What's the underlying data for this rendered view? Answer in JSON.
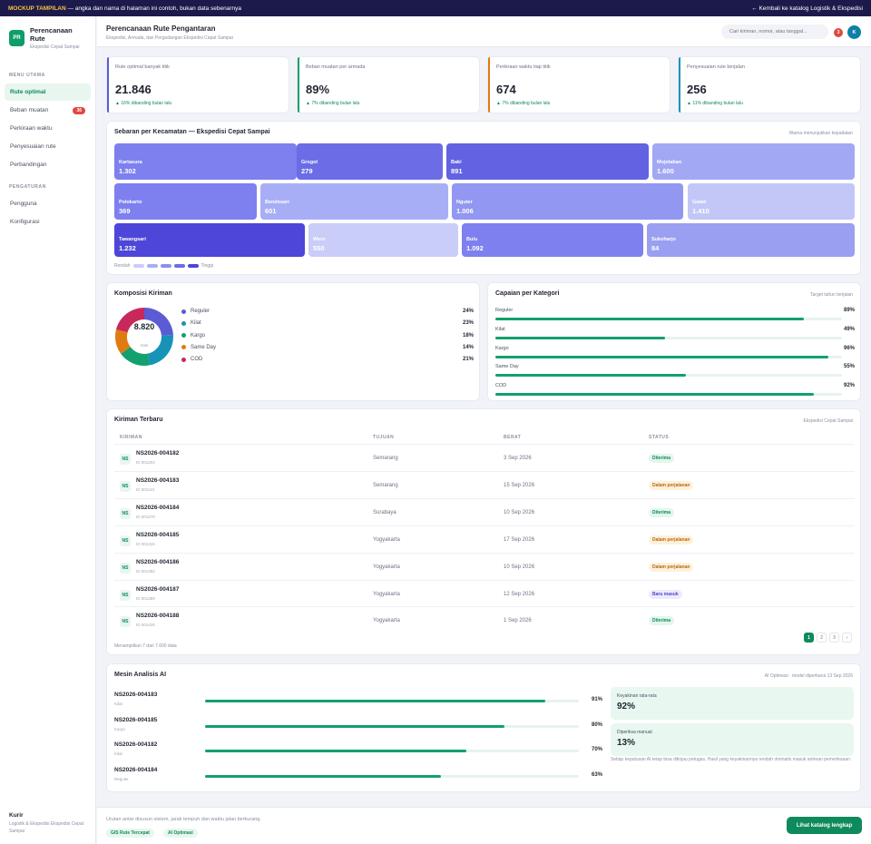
{
  "banner": {
    "tag": "MOCKUP TAMPILAN",
    "text": " — angka dan nama di halaman ini contoh, bukan data sebenarnya",
    "back": "← Kembali ke katalog Logistik & Ekspedisi"
  },
  "brand": {
    "logo": "PR",
    "title": "Perencanaan Rute",
    "subtitle": "Ekspedisi Cepat Sampai"
  },
  "nav": {
    "main_label": "MENU UTAMA",
    "main": [
      {
        "label": "Rute optimal",
        "active": true
      },
      {
        "label": "Beban muatan",
        "badge": "36"
      },
      {
        "label": "Perkiraan waktu"
      },
      {
        "label": "Penyesuaian rute"
      },
      {
        "label": "Perbandingan"
      }
    ],
    "settings_label": "PENGATURAN",
    "settings": [
      {
        "label": "Pengguna"
      },
      {
        "label": "Konfigurasi"
      }
    ]
  },
  "sidebar_footer": {
    "title": "Kurir",
    "subtitle": "Logistik & Ekspedisi Ekspedisi Cepat Sampai"
  },
  "header": {
    "title": "Perencanaan Rute Pengantaran",
    "subtitle": "Ekspedisi, Armada, dan Pergudangan Ekspedisi Cepat Sampai",
    "search_placeholder": "Cari kiriman, nomor, atau tanggal...",
    "notifications": "3",
    "avatar": "K"
  },
  "kpis": [
    {
      "label": "Rute optimal banyak titik",
      "value": "21.846",
      "delta": "▲ 16% dibanding bulan lalu",
      "color": "#5b5bd6"
    },
    {
      "label": "Beban muatan per armada",
      "value": "89%",
      "delta": "▲ 7% dibanding bulan lalu",
      "color": "#12a06e"
    },
    {
      "label": "Perkiraan waktu tiap titik",
      "value": "674",
      "delta": "▲ 7% dibanding bulan lalu",
      "color": "#e07b12"
    },
    {
      "label": "Penyesuaian rute berjalan",
      "value": "256",
      "delta": "▲ 11% dibanding bulan lalu",
      "color": "#1793b8"
    }
  ],
  "treemap": {
    "title": "Sebaran per Kecamatan — Ekspedisi Cepat Sampai",
    "note": "Warna menunjukkan kepadatan",
    "scale_low": "Rendah",
    "scale_high": "Tinggi",
    "scale_colors": [
      "#c9cdf8",
      "#a8aef5",
      "#8b90f0",
      "#6b6ce6",
      "#4e46d8"
    ],
    "tiles": [
      {
        "name": "Kartasura",
        "value": "1.302",
        "color": "#7d80ee"
      },
      {
        "name": "Grogol",
        "value": "279",
        "color": "#6b6ce6"
      },
      {
        "name": "Baki",
        "value": "891",
        "color": "#6262e2"
      },
      {
        "name": "Mojolaban",
        "value": "1.600",
        "color": "#a2a8f3"
      },
      {
        "name": "Polokarto",
        "value": "369",
        "color": "#7d80ee"
      },
      {
        "name": "Bendosari",
        "value": "601",
        "color": "#a8aef5"
      },
      {
        "name": "Nguter",
        "value": "1.006",
        "color": "#9297f1"
      },
      {
        "name": "Gatak",
        "value": "1.410",
        "color": "#c2c7f7"
      },
      {
        "name": "Tawangsari",
        "value": "1.232",
        "color": "#4e46d8"
      },
      {
        "name": "Weru",
        "value": "550",
        "color": "#c9cdf8"
      },
      {
        "name": "Bulu",
        "value": "1.092",
        "color": "#7d80ee"
      },
      {
        "name": "Sukoharjo",
        "value": "84",
        "color": "#9a9ff2"
      }
    ]
  },
  "composition": {
    "title": "Komposisi Kiriman",
    "total": "8.820",
    "total_label": "total",
    "items": [
      {
        "label": "Reguler",
        "pct": "24%",
        "value": 24,
        "color": "#5b5bd6"
      },
      {
        "label": "Kilat",
        "pct": "23%",
        "value": 23,
        "color": "#1793b8"
      },
      {
        "label": "Kargo",
        "pct": "18%",
        "value": 18,
        "color": "#12a06e"
      },
      {
        "label": "Same Day",
        "pct": "14%",
        "value": 14,
        "color": "#e07b12"
      },
      {
        "label": "COD",
        "pct": "21%",
        "value": 21,
        "color": "#c8285a"
      }
    ]
  },
  "achievement": {
    "title": "Capaian per Kategori",
    "note": "Target tahun berjalan",
    "items": [
      {
        "label": "Reguler",
        "pct": "89%",
        "value": 0.89
      },
      {
        "label": "Kilat",
        "pct": "49%",
        "value": 0.49
      },
      {
        "label": "Kargo",
        "pct": "96%",
        "value": 0.96
      },
      {
        "label": "Same Day",
        "pct": "55%",
        "value": 0.55
      },
      {
        "label": "COD",
        "pct": "92%",
        "value": 0.92
      }
    ]
  },
  "shipments": {
    "title": "Kiriman Terbaru",
    "note": "Ekspedisi Cepat Sampai",
    "columns": [
      "KIRIMAN",
      "TUJUAN",
      "BERAT",
      "STATUS"
    ],
    "rows": [
      {
        "avatar": "NS",
        "code": "NS2026-004182",
        "id": "ID 001204",
        "dest": "Semarang",
        "date": "3 Sep 2026",
        "status": "Diterima",
        "kind": "ok"
      },
      {
        "avatar": "NS",
        "code": "NS2026-004183",
        "id": "ID 001241",
        "dest": "Semarang",
        "date": "15 Sep 2026",
        "status": "Dalam perjalanan",
        "kind": "warn"
      },
      {
        "avatar": "NS",
        "code": "NS2026-004184",
        "id": "ID 001278",
        "dest": "Surabaya",
        "date": "10 Sep 2026",
        "status": "Diterima",
        "kind": "ok"
      },
      {
        "avatar": "NS",
        "code": "NS2026-004185",
        "id": "ID 001315",
        "dest": "Yogyakarta",
        "date": "17 Sep 2026",
        "status": "Dalam perjalanan",
        "kind": "warn"
      },
      {
        "avatar": "NS",
        "code": "NS2026-004186",
        "id": "ID 001352",
        "dest": "Yogyakarta",
        "date": "10 Sep 2026",
        "status": "Dalam perjalanan",
        "kind": "warn"
      },
      {
        "avatar": "NS",
        "code": "NS2026-004187",
        "id": "ID 001389",
        "dest": "Yogyakarta",
        "date": "12 Sep 2026",
        "status": "Baru masuk",
        "kind": "new"
      },
      {
        "avatar": "NS",
        "code": "NS2026-004188",
        "id": "ID 001426",
        "dest": "Yogyakarta",
        "date": "1 Sep 2026",
        "status": "Diterima",
        "kind": "ok"
      }
    ],
    "showing": "Menampilkan 7 dari 7.600 data",
    "pages": [
      "1",
      "2",
      "3",
      "›"
    ]
  },
  "ai": {
    "title": "Mesin Analisis AI",
    "note": "AI Optimasi · model diperbarui 13 Sep 2026",
    "rows": [
      {
        "code": "NS2026-004183",
        "kind": "Kilat",
        "pct": "91%",
        "value": 0.91
      },
      {
        "code": "NS2026-004185",
        "kind": "Kargo",
        "pct": "80%",
        "value": 0.8
      },
      {
        "code": "NS2026-004182",
        "kind": "Kilat",
        "pct": "70%",
        "value": 0.7
      },
      {
        "code": "NS2026-004184",
        "kind": "Reguler",
        "pct": "63%",
        "value": 0.63
      }
    ],
    "stats": [
      {
        "label": "Keyakinan rata-rata",
        "value": "92%"
      },
      {
        "label": "Diperiksa manual",
        "value": "13%"
      }
    ],
    "footnote": "Setiap keputusan AI tetap bisa ditinjau petugas. Hasil yang keyakinannya rendah otomatis masuk antrean pemeriksaan."
  },
  "footer": {
    "note": "Urutan antar disusun sistem, jarak tempuh dan waktu jalan berkurang.",
    "chips": [
      "GIS Rute Tercepat",
      "AI Optimasi"
    ],
    "cta": "Lihat katalog lengkap"
  }
}
